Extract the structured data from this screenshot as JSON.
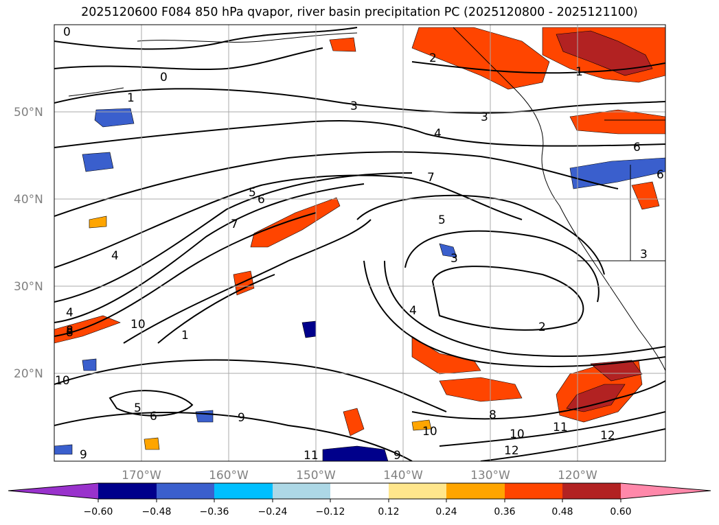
{
  "title": "2025120600 F084 850 hPa qvapor, river basin precipitation PC (2025120800 - 2025121100)",
  "lat_labels": [
    "50°N",
    "40°N",
    "30°N",
    "20°N"
  ],
  "lon_labels": [
    "170°W",
    "160°W",
    "150°W",
    "140°W",
    "130°W",
    "120°W"
  ],
  "contour_labels": [
    "0",
    "0",
    "1",
    "2",
    "3",
    "3",
    "4",
    "5",
    "6",
    "7",
    "5",
    "4",
    "3",
    "2",
    "1",
    "10",
    "8",
    "4",
    "7",
    "4",
    "10",
    "6",
    "5",
    "9",
    "10",
    "8",
    "9",
    "11",
    "10",
    "12",
    "12",
    "11",
    "1",
    "6",
    "6",
    "3",
    "8",
    "9"
  ],
  "colorbar": {
    "colors": [
      "#9932cc",
      "#00008b",
      "#3a5fcd",
      "#00bfff",
      "#add8e6",
      "#ffffff",
      "#ffe68c",
      "#ffa500",
      "#ff4500",
      "#b22222",
      "#ff88aa"
    ],
    "tick_labels": [
      "−0.60",
      "−0.48",
      "−0.36",
      "−0.24",
      "−0.12",
      "0.12",
      "0.24",
      "0.36",
      "0.48",
      "0.60"
    ]
  }
}
